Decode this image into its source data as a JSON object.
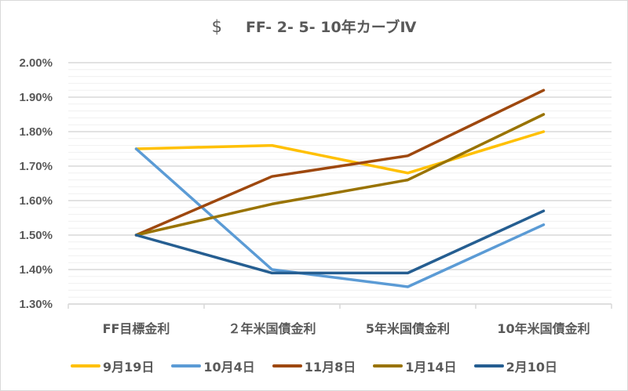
{
  "chart": {
    "title_symbol": "$",
    "title_text": "FF- 2- 5- 10年カーブⅣ"
  },
  "chart_data": {
    "type": "line",
    "title": "$ FF- 2- 5- 10年カーブⅣ",
    "xlabel": "",
    "ylabel": "",
    "categories": [
      "FF目標金利",
      "２年米国債金利",
      "5年米国債金利",
      "10年米国債金利"
    ],
    "yticks": [
      "2.00%",
      "1.90%",
      "1.80%",
      "1.70%",
      "1.60%",
      "1.50%",
      "1.40%",
      "1.30%"
    ],
    "ylim": [
      1.3,
      2.0
    ],
    "grid": {
      "major": 0.1,
      "minor": 0.02
    },
    "legend_position": "bottom",
    "series": [
      {
        "name": "9月19日",
        "color": "#FFC000",
        "values": [
          1.75,
          1.76,
          1.68,
          1.8
        ]
      },
      {
        "name": "10月4日",
        "color": "#5B9BD5",
        "values": [
          1.75,
          1.4,
          1.35,
          1.53
        ]
      },
      {
        "name": "11月8日",
        "color": "#9E480E",
        "values": [
          1.5,
          1.67,
          1.73,
          1.92
        ]
      },
      {
        "name": "1月14日",
        "color": "#997300",
        "values": [
          1.5,
          1.59,
          1.66,
          1.85
        ]
      },
      {
        "name": "2月10日",
        "color": "#255E91",
        "values": [
          1.5,
          1.39,
          1.39,
          1.57
        ]
      }
    ]
  }
}
